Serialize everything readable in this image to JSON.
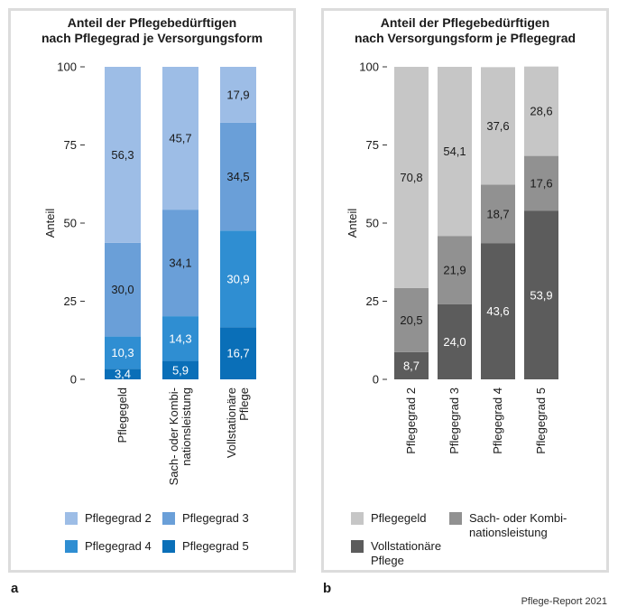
{
  "chart_data": [
    {
      "type": "bar",
      "stacked": true,
      "panel_letter": "a",
      "title_lines": [
        "Anteil der Pflegebedürftigen",
        "nach Pflegegrad je Versorgungsform"
      ],
      "ylabel": "Anteil",
      "ylim": [
        0,
        100
      ],
      "yticks": [
        "0",
        "25",
        "50",
        "75",
        "100"
      ],
      "categories": [
        [
          "Pflegegeld"
        ],
        [
          "Sach- oder Kombi-",
          "nationsleistung"
        ],
        [
          "Vollstationäre",
          "Pflege"
        ]
      ],
      "series": [
        {
          "name": "Pflegegrad 5",
          "color": "#0a6fb8",
          "values": [
            3.4,
            5.9,
            16.7
          ],
          "labels": [
            "3,4",
            "5,9",
            "16,7"
          ]
        },
        {
          "name": "Pflegegrad 4",
          "color": "#2f8ed2",
          "values": [
            10.3,
            14.3,
            30.9
          ],
          "labels": [
            "10,3",
            "14,3",
            "30,9"
          ]
        },
        {
          "name": "Pflegegrad 3",
          "color": "#6a9fd8",
          "values": [
            30.0,
            34.1,
            34.5
          ],
          "labels": [
            "30,0",
            "34,1",
            "34,5"
          ]
        },
        {
          "name": "Pflegegrad 2",
          "color": "#9dbde6",
          "values": [
            56.3,
            45.7,
            17.9
          ],
          "labels": [
            "56,3",
            "45,7",
            "17,9"
          ]
        }
      ],
      "legend": [
        {
          "label": "Pflegegrad 2",
          "color": "#9dbde6"
        },
        {
          "label": "Pflegegrad 3",
          "color": "#6a9fd8"
        },
        {
          "label": "Pflegegrad 4",
          "color": "#2f8ed2"
        },
        {
          "label": "Pflegegrad 5",
          "color": "#0a6fb8"
        }
      ]
    },
    {
      "type": "bar",
      "stacked": true,
      "panel_letter": "b",
      "title_lines": [
        "Anteil der Pflegebedürftigen",
        "nach Versorgungsform je Pflegegrad"
      ],
      "ylabel": "Anteil",
      "ylim": [
        0,
        100
      ],
      "yticks": [
        "0",
        "25",
        "50",
        "75",
        "100"
      ],
      "categories": [
        [
          "Pflegegrad 2"
        ],
        [
          "Pflegegrad 3"
        ],
        [
          "Pflegegrad 4"
        ],
        [
          "Pflegegrad 5"
        ]
      ],
      "series": [
        {
          "name": "Vollstationäre Pflege",
          "color": "#5c5c5c",
          "values": [
            8.7,
            24.0,
            43.6,
            53.9
          ],
          "labels": [
            "8,7",
            "24,0",
            "43,6",
            "53,9"
          ]
        },
        {
          "name": "Sach- oder Kombinationsleistung",
          "color": "#919191",
          "values": [
            20.5,
            21.9,
            18.7,
            17.6
          ],
          "labels": [
            "20,5",
            "21,9",
            "18,7",
            "17,6"
          ]
        },
        {
          "name": "Pflegegeld",
          "color": "#c6c6c6",
          "values": [
            70.8,
            54.1,
            37.6,
            28.6
          ],
          "labels": [
            "70,8",
            "54,1",
            "37,6",
            "28,6"
          ]
        }
      ],
      "legend": [
        {
          "label_lines": [
            "Pflegegeld"
          ],
          "color": "#c6c6c6"
        },
        {
          "label_lines": [
            "Sach- oder Kombi-",
            "nationsleistung"
          ],
          "color": "#919191"
        },
        {
          "label_lines": [
            "Vollstationäre",
            "Pflege"
          ],
          "color": "#5c5c5c"
        }
      ]
    }
  ],
  "footer": {
    "source": "Pflege-Report 2021"
  }
}
